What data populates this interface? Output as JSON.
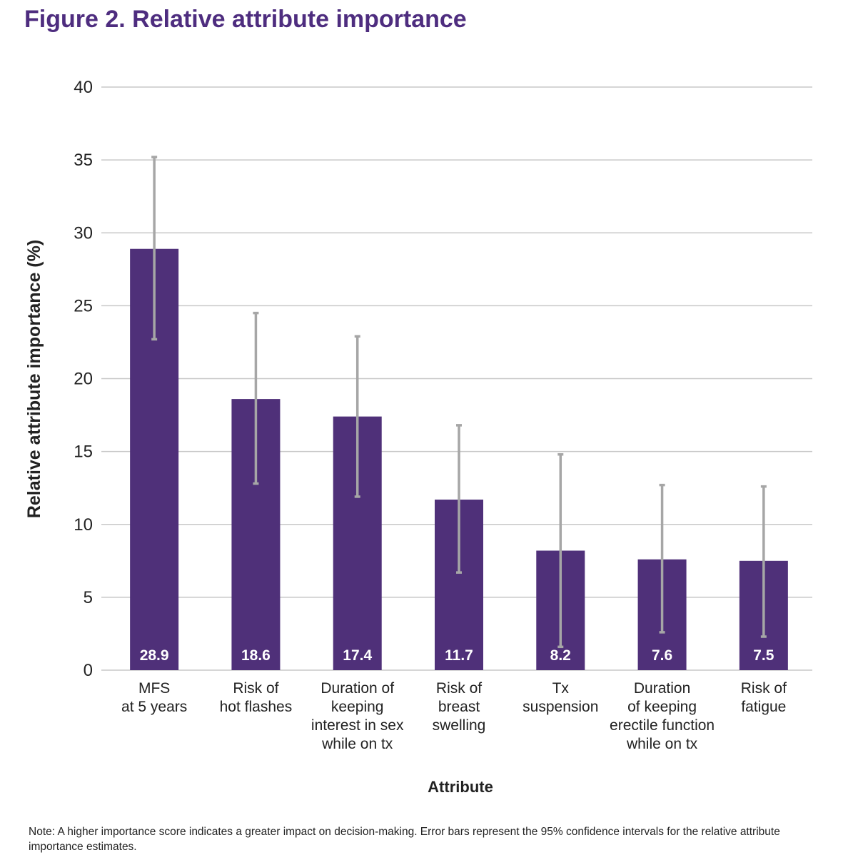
{
  "figure": {
    "title": "Figure 2. Relative attribute importance",
    "note": "Note: A higher importance score indicates a greater impact on decision-making. Error bars represent the 95% confidence intervals for the relative attribute importance estimates."
  },
  "colors": {
    "bar": "#4f3079",
    "error_bar": "#a6a6a6",
    "title": "#4e2d7f",
    "grid": "#c8c8c8",
    "value_label": "#ffffff"
  },
  "chart_data": {
    "type": "bar",
    "title": "",
    "xlabel": "Attribute",
    "ylabel": "Relative attribute importance (%)",
    "ylim": [
      0,
      40
    ],
    "yticks": [
      0,
      5,
      10,
      15,
      20,
      25,
      30,
      35,
      40
    ],
    "grid": true,
    "legend": "none",
    "categories": [
      [
        "MFS",
        "at 5 years"
      ],
      [
        "Risk of",
        "hot flashes"
      ],
      [
        "Duration of",
        "keeping",
        "interest in sex",
        "while on tx"
      ],
      [
        "Risk of",
        "breast",
        "swelling"
      ],
      [
        "Tx",
        "suspension"
      ],
      [
        "Duration",
        "of keeping",
        "erectile function",
        "while on tx"
      ],
      [
        "Risk of",
        "fatigue"
      ]
    ],
    "values": [
      28.9,
      18.6,
      17.4,
      11.7,
      8.2,
      7.6,
      7.5
    ],
    "value_labels": [
      "28.9",
      "18.6",
      "17.4",
      "11.7",
      "8.2",
      "7.6",
      "7.5"
    ],
    "error_low": [
      22.7,
      12.8,
      11.9,
      6.7,
      1.6,
      2.6,
      2.3
    ],
    "error_high": [
      35.2,
      24.5,
      22.9,
      16.8,
      14.8,
      12.7,
      12.6
    ]
  }
}
